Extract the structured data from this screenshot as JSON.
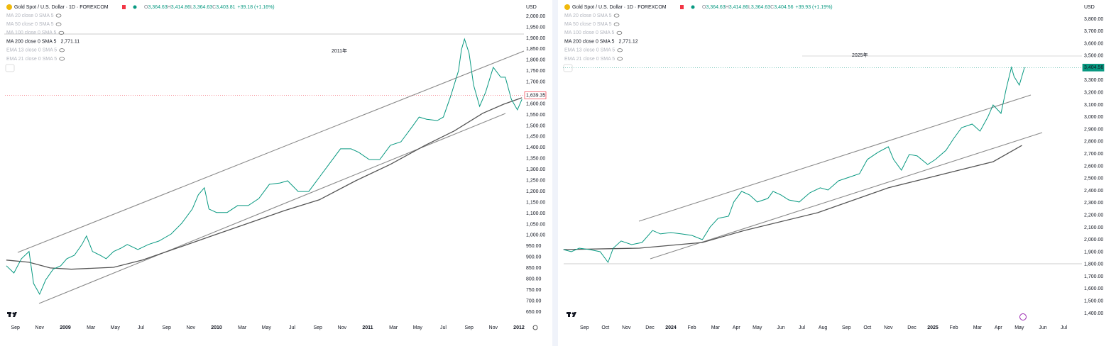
{
  "chart_data": [
    {
      "type": "line",
      "title": "Gold Spot / U.S. Dollar · 1D · FOREXCOM",
      "stats": [
        "O",
        "3,364.63",
        "H",
        "3,414.86",
        "L",
        "3,364.63",
        "C",
        "3,403.81",
        "+39.18 (+1.16%)"
      ],
      "currency": "USD",
      "annotation": "2011年",
      "indicators": [
        {
          "name": "MA 20 close 0 SMA 5"
        },
        {
          "name": "MA 50 close 0 SMA 5"
        },
        {
          "name": "MA 100 close 0 SMA 5"
        },
        {
          "name": "MA 200 close 0 SMA 5",
          "value_label": "2,771.11",
          "color": "#555555",
          "x": [
            2008.61,
            2008.76,
            2008.9,
            2009.04,
            2009.32,
            2009.51,
            2009.74,
            2009.98,
            2010.21,
            2010.45,
            2010.68,
            2010.92,
            2011.15,
            2011.38,
            2011.57,
            2011.76,
            2011.9,
            2012.02
          ],
          "values": [
            887,
            877,
            851,
            845,
            854,
            887,
            942,
            1000,
            1055,
            1113,
            1162,
            1249,
            1324,
            1411,
            1476,
            1557,
            1599,
            1628
          ]
        },
        {
          "name": "EMA 13 close 0 SMA 5"
        },
        {
          "name": "EMA 21 close 0 SMA 5"
        }
      ],
      "color": "#089981",
      "x": [
        2008.61,
        2008.66,
        2008.71,
        2008.76,
        2008.79,
        2008.83,
        2008.87,
        2008.92,
        2008.97,
        2009.01,
        2009.06,
        2009.11,
        2009.14,
        2009.18,
        2009.23,
        2009.27,
        2009.32,
        2009.37,
        2009.41,
        2009.48,
        2009.55,
        2009.62,
        2009.7,
        2009.77,
        2009.84,
        2009.88,
        2009.92,
        2009.95,
        2010.0,
        2010.07,
        2010.14,
        2010.21,
        2010.28,
        2010.35,
        2010.42,
        2010.47,
        2010.54,
        2010.61,
        2010.68,
        2010.75,
        2010.82,
        2010.89,
        2010.94,
        2011.01,
        2011.08,
        2011.15,
        2011.22,
        2011.29,
        2011.34,
        2011.39,
        2011.46,
        2011.5,
        2011.55,
        2011.6,
        2011.62,
        2011.64,
        2011.67,
        2011.7,
        2011.74,
        2011.78,
        2011.83,
        2011.88,
        2011.91,
        2011.95,
        2011.99,
        2012.02
      ],
      "values": [
        861,
        828,
        893,
        926,
        780,
        731,
        796,
        845,
        861,
        893,
        909,
        958,
        997,
        926,
        909,
        893,
        926,
        942,
        958,
        935,
        958,
        974,
        1006,
        1055,
        1120,
        1185,
        1217,
        1120,
        1104,
        1104,
        1136,
        1136,
        1168,
        1233,
        1239,
        1249,
        1200,
        1200,
        1265,
        1330,
        1395,
        1395,
        1379,
        1346,
        1346,
        1411,
        1427,
        1492,
        1540,
        1530,
        1524,
        1540,
        1638,
        1751,
        1848,
        1896,
        1832,
        1686,
        1589,
        1654,
        1767,
        1722,
        1722,
        1621,
        1573,
        1621
      ],
      "last_price": {
        "value": 1639.35,
        "label": "1,639.35"
      },
      "last_price_color": "#f23645",
      "xlim": [
        2008.601,
        2012.033
      ],
      "xticks": [
        {
          "value": 2008.67,
          "label": "Sep"
        },
        {
          "value": 2008.83,
          "label": "Nov"
        },
        2009,
        {
          "value": 2009.17,
          "label": "Mar"
        },
        {
          "value": 2009.33,
          "label": "May"
        },
        {
          "value": 2009.5,
          "label": "Jul"
        },
        {
          "value": 2009.67,
          "label": "Sep"
        },
        {
          "value": 2009.83,
          "label": "Nov"
        },
        2010,
        {
          "value": 2010.17,
          "label": "Mar"
        },
        {
          "value": 2010.33,
          "label": "May"
        },
        {
          "value": 2010.5,
          "label": "Jul"
        },
        {
          "value": 2010.67,
          "label": "Sep"
        },
        {
          "value": 2010.83,
          "label": "Nov"
        },
        2011,
        {
          "value": 2011.17,
          "label": "Mar"
        },
        {
          "value": 2011.33,
          "label": "May"
        },
        {
          "value": 2011.5,
          "label": "Jul"
        },
        {
          "value": 2011.67,
          "label": "Sep"
        },
        {
          "value": 2011.83,
          "label": "Nov"
        },
        2012
      ],
      "ylim": [
        611,
        2026
      ],
      "yticks": [
        {
          "value": 650,
          "label": "650.00"
        },
        {
          "value": 700,
          "label": "700.00"
        },
        {
          "value": 750,
          "label": "750.00"
        },
        {
          "value": 800,
          "label": "800.00"
        },
        {
          "value": 850,
          "label": "850.00"
        },
        {
          "value": 900,
          "label": "900.00"
        },
        {
          "value": 950,
          "label": "950.00"
        },
        {
          "value": 1000,
          "label": "1,000.00"
        },
        {
          "value": 1050,
          "label": "1,050.00"
        },
        {
          "value": 1100,
          "label": "1,100.00"
        },
        {
          "value": 1150,
          "label": "1,150.00"
        },
        {
          "value": 1200,
          "label": "1,200.00"
        },
        {
          "value": 1250,
          "label": "1,250.00"
        },
        {
          "value": 1300,
          "label": "1,300.00"
        },
        {
          "value": 1350,
          "label": "1,350.00"
        },
        {
          "value": 1400,
          "label": "1,400.00"
        },
        {
          "value": 1450,
          "label": "1,450.00"
        },
        {
          "value": 1500,
          "label": "1,500.00"
        },
        {
          "value": 1550,
          "label": "1,550.00"
        },
        {
          "value": 1600,
          "label": "1,600.00"
        },
        {
          "value": 1700,
          "label": "1,700.00"
        },
        {
          "value": 1750,
          "label": "1,750.00"
        },
        {
          "value": 1800,
          "label": "1,800.00"
        },
        {
          "value": 1850,
          "label": "1,850.00"
        },
        {
          "value": 1900,
          "label": "1,900.00"
        },
        {
          "value": 1950,
          "label": "1,950.00"
        },
        {
          "value": 2000,
          "label": "2,000.00"
        }
      ],
      "grid": false
    },
    {
      "type": "line",
      "title": "Gold Spot / U.S. Dollar · 1D · FOREXCOM",
      "stats": [
        "O",
        "3,364.63",
        "H",
        "3,414.86",
        "L",
        "3,364.63",
        "C",
        "3,404.56",
        "+39.93 (+1.19%)"
      ],
      "currency": "USD",
      "annotation": "2025年",
      "indicators": [
        {
          "name": "MA 20 close 0 SMA 5"
        },
        {
          "name": "MA 50 close 0 SMA 5"
        },
        {
          "name": "MA 100 close 0 SMA 5"
        },
        {
          "name": "MA 200 close 0 SMA 5",
          "value_label": "2,771.12",
          "color": "#555555",
          "x": [
            2023.59,
            2023.88,
            2024.12,
            2024.28,
            2024.56,
            2024.83,
            2025.1,
            2025.23,
            2025.34
          ],
          "values": [
            1920,
            1932,
            1978,
            2076,
            2221,
            2424,
            2568,
            2637,
            2770
          ]
        },
        {
          "name": "EMA 13 close 0 SMA 5"
        },
        {
          "name": "EMA 21 close 0 SMA 5"
        }
      ],
      "color": "#089981",
      "x": [
        2023.59,
        2023.62,
        2023.65,
        2023.69,
        2023.73,
        2023.76,
        2023.78,
        2023.81,
        2023.85,
        2023.89,
        2023.93,
        2023.96,
        2024.0,
        2024.04,
        2024.08,
        2024.12,
        2024.15,
        2024.18,
        2024.22,
        2024.24,
        2024.27,
        2024.3,
        2024.33,
        2024.37,
        2024.39,
        2024.42,
        2024.45,
        2024.49,
        2024.53,
        2024.57,
        2024.6,
        2024.64,
        2024.68,
        2024.72,
        2024.75,
        2024.79,
        2024.83,
        2024.85,
        2024.88,
        2024.91,
        2024.94,
        2024.98,
        2025.01,
        2025.05,
        2025.08,
        2025.11,
        2025.15,
        2025.18,
        2025.21,
        2025.23,
        2025.26,
        2025.28,
        2025.3,
        2025.31,
        2025.33,
        2025.35
      ],
      "values": [
        1920,
        1903,
        1932,
        1920,
        1903,
        1816,
        1932,
        1990,
        1961,
        1978,
        2076,
        2048,
        2059,
        2048,
        2036,
        2001,
        2105,
        2175,
        2192,
        2308,
        2395,
        2366,
        2308,
        2337,
        2395,
        2366,
        2325,
        2308,
        2383,
        2424,
        2406,
        2481,
        2510,
        2539,
        2655,
        2713,
        2759,
        2655,
        2568,
        2696,
        2684,
        2614,
        2655,
        2730,
        2828,
        2915,
        2944,
        2886,
        3002,
        3100,
        3031,
        3233,
        3407,
        3332,
        3262,
        3407
      ],
      "last_price": {
        "value": 3404.56,
        "label": "3,404.56"
      },
      "last_price_color": "#089981",
      "xlim": [
        2023.588,
        2025.569
      ],
      "xticks": [
        {
          "value": 2023.67,
          "label": "Sep"
        },
        {
          "value": 2023.75,
          "label": "Oct"
        },
        {
          "value": 2023.83,
          "label": "Nov"
        },
        {
          "value": 2023.92,
          "label": "Dec"
        },
        2024,
        {
          "value": 2024.08,
          "label": "Feb"
        },
        {
          "value": 2024.17,
          "label": "Mar"
        },
        {
          "value": 2024.25,
          "label": "Apr"
        },
        {
          "value": 2024.33,
          "label": "May"
        },
        {
          "value": 2024.42,
          "label": "Jun"
        },
        {
          "value": 2024.5,
          "label": "Jul"
        },
        {
          "value": 2024.58,
          "label": "Aug"
        },
        {
          "value": 2024.67,
          "label": "Sep"
        },
        {
          "value": 2024.75,
          "label": "Oct"
        },
        {
          "value": 2024.83,
          "label": "Nov"
        },
        {
          "value": 2024.92,
          "label": "Dec"
        },
        2025,
        {
          "value": 2025.08,
          "label": "Feb"
        },
        {
          "value": 2025.17,
          "label": "Mar"
        },
        {
          "value": 2025.25,
          "label": "Apr"
        },
        {
          "value": 2025.33,
          "label": "May"
        },
        {
          "value": 2025.42,
          "label": "Jun"
        },
        {
          "value": 2025.5,
          "label": "Jul"
        }
      ],
      "ylim": [
        1342,
        3869
      ],
      "yticks": [
        {
          "value": 1400,
          "label": "1,400.00"
        },
        {
          "value": 1500,
          "label": "1,500.00"
        },
        {
          "value": 1600,
          "label": "1,600.00"
        },
        {
          "value": 1700,
          "label": "1,700.00"
        },
        {
          "value": 1800,
          "label": "1,800.00"
        },
        {
          "value": 1900,
          "label": "1,900.00"
        },
        {
          "value": 2000,
          "label": "2,000.00"
        },
        {
          "value": 2100,
          "label": "2,100.00"
        },
        {
          "value": 2200,
          "label": "2,200.00"
        },
        {
          "value": 2300,
          "label": "2,300.00"
        },
        {
          "value": 2400,
          "label": "2,400.00"
        },
        {
          "value": 2500,
          "label": "2,500.00"
        },
        {
          "value": 2600,
          "label": "2,600.00"
        },
        {
          "value": 2700,
          "label": "2,700.00"
        },
        {
          "value": 2800,
          "label": "2,800.00"
        },
        {
          "value": 2900,
          "label": "2,900.00"
        },
        {
          "value": 3000,
          "label": "3,000.00"
        },
        {
          "value": 3100,
          "label": "3,100.00"
        },
        {
          "value": 3200,
          "label": "3,200.00"
        },
        {
          "value": 3300,
          "label": "3,300.00"
        },
        {
          "value": 3500,
          "label": "3,500.00"
        },
        {
          "value": 3600,
          "label": "3,600.00"
        },
        {
          "value": 3700,
          "label": "3,700.00"
        },
        {
          "value": 3800,
          "label": "3,800.00"
        }
      ],
      "grid": false
    }
  ]
}
